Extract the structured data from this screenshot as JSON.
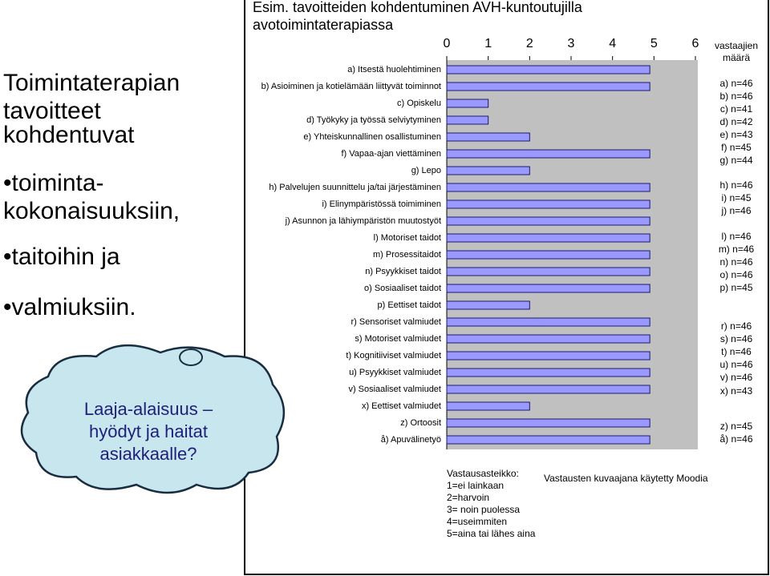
{
  "slide": {
    "heading": [
      "Toimintaterapian",
      "tavoitteet",
      "kohdentuvat"
    ],
    "bullets": [
      "•toiminta-",
      "kokonaisuuksiin,",
      "•taitoihin ja",
      "•valmiuksiin."
    ],
    "cloud": [
      "Laaja-alaisuus –",
      "hyödyt ja haitat",
      "asiakkaalle?"
    ]
  },
  "chart_data": {
    "type": "bar",
    "orientation": "horizontal",
    "title": [
      "Esim. tavoitteiden kohdentuminen AVH-kuntoutujilla",
      "avotoimintaterapiassa"
    ],
    "categories": [
      "a) Itsestä huolehtiminen",
      "b) Asioiminen ja kotielämään liittyvät toiminnot",
      "c) Opiskelu",
      "d) Työkyky ja työssä selviytyminen",
      "e) Yhteiskunnallinen osallistuminen",
      "f) Vapaa-ajan viettäminen",
      "g) Lepo",
      "h) Palvelujen suunnittelu ja/tai järjestäminen",
      "i) Elinympäristössä toimiminen",
      "j) Asunnon ja lähiympäristön muutostyöt",
      "l) Motoriset taidot",
      "m) Prosessitaidot",
      "n) Psyykkiset taidot",
      "o) Sosiaaliset taidot",
      "p) Eettiset taidot",
      "r) Sensoriset valmiudet",
      "s) Motoriset valmiudet",
      "t) Kognitiiviset valmiudet",
      "u) Psyykkiset valmiudet",
      "v) Sosiaaliset valmiudet",
      "x) Eettiset valmiudet",
      "z) Ortoosit",
      "å) Apuvälinetyö"
    ],
    "values": [
      4.9,
      4.9,
      1,
      1,
      2,
      4.9,
      2,
      4.9,
      4.9,
      4.9,
      4.9,
      4.9,
      4.9,
      4.9,
      2,
      4.9,
      4.9,
      4.9,
      4.9,
      4.9,
      2,
      4.9,
      4.9
    ],
    "color": "#9999ff",
    "xlim": [
      0,
      6
    ],
    "xticks": [
      0,
      1,
      2,
      3,
      4,
      5,
      6
    ],
    "sample_size_title": "vastaajien määrä",
    "sample_sizes": [
      "a) n=46",
      "b) n=46",
      "c) n=41",
      "d) n=42",
      "e) n=43",
      "f) n=45",
      "g) n=44",
      "h) n=46",
      "i) n=45",
      "j) n=46",
      "l) n=46",
      "m) n=46",
      "n) n=46",
      "o) n=46",
      "p) n=45",
      "r) n=46",
      "s) n=46",
      "t) n=46",
      "u) n=46",
      "v) n=46",
      "x) n=43",
      "z) n=45",
      "å) n=46"
    ],
    "scale_legend": [
      "Vastausasteikko:",
      "1=ei lainkaan",
      "2=harvoin",
      "3= noin puolessa",
      "4=useimmiten",
      "5=aina tai lähes aina"
    ],
    "note": "Vastausten kuvaajana käytetty Moodia"
  }
}
